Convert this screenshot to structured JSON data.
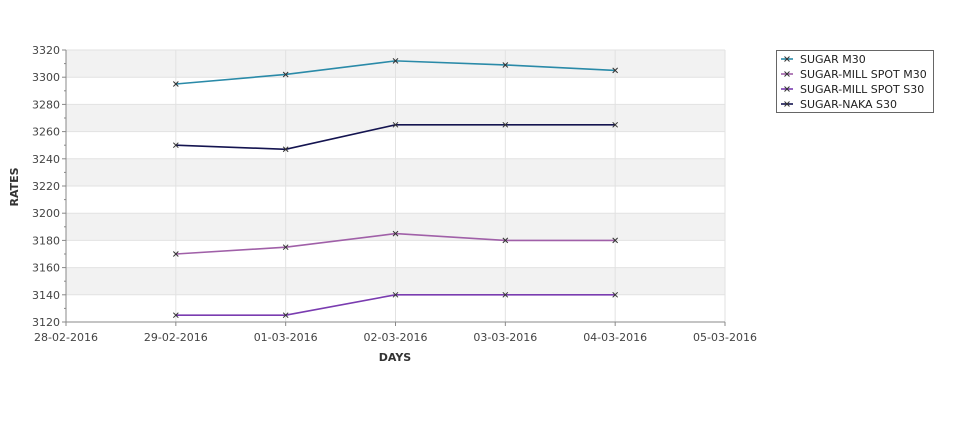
{
  "chart_data": {
    "type": "line",
    "title": "",
    "xlabel": "DAYS",
    "ylabel": "RATES",
    "x_ticks": [
      "28-02-2016",
      "29-02-2016",
      "01-03-2016",
      "02-03-2016",
      "03-03-2016",
      "04-03-2016",
      "05-03-2016"
    ],
    "x": [
      "29-02-2016",
      "01-03-2016",
      "02-03-2016",
      "03-03-2016",
      "04-03-2016"
    ],
    "ylim": [
      3120,
      3320
    ],
    "y_ticks": [
      3120,
      3140,
      3160,
      3180,
      3200,
      3220,
      3240,
      3260,
      3280,
      3300,
      3320
    ],
    "grid": true,
    "legend": "right",
    "series": [
      {
        "name": "SUGAR M30",
        "color": "#2a8aa8",
        "values": [
          3295,
          3302,
          3312,
          3309,
          3305
        ]
      },
      {
        "name": "SUGAR-MILL SPOT M30",
        "color": "#a060a8",
        "values": [
          3170,
          3175,
          3185,
          3180,
          3180
        ]
      },
      {
        "name": "SUGAR-MILL SPOT S30",
        "color": "#7a3cb0",
        "values": [
          3125,
          3125,
          3140,
          3140,
          3140
        ]
      },
      {
        "name": "SUGAR-NAKA S30",
        "color": "#141450",
        "values": [
          3250,
          3247,
          3265,
          3265,
          3265
        ]
      }
    ]
  }
}
